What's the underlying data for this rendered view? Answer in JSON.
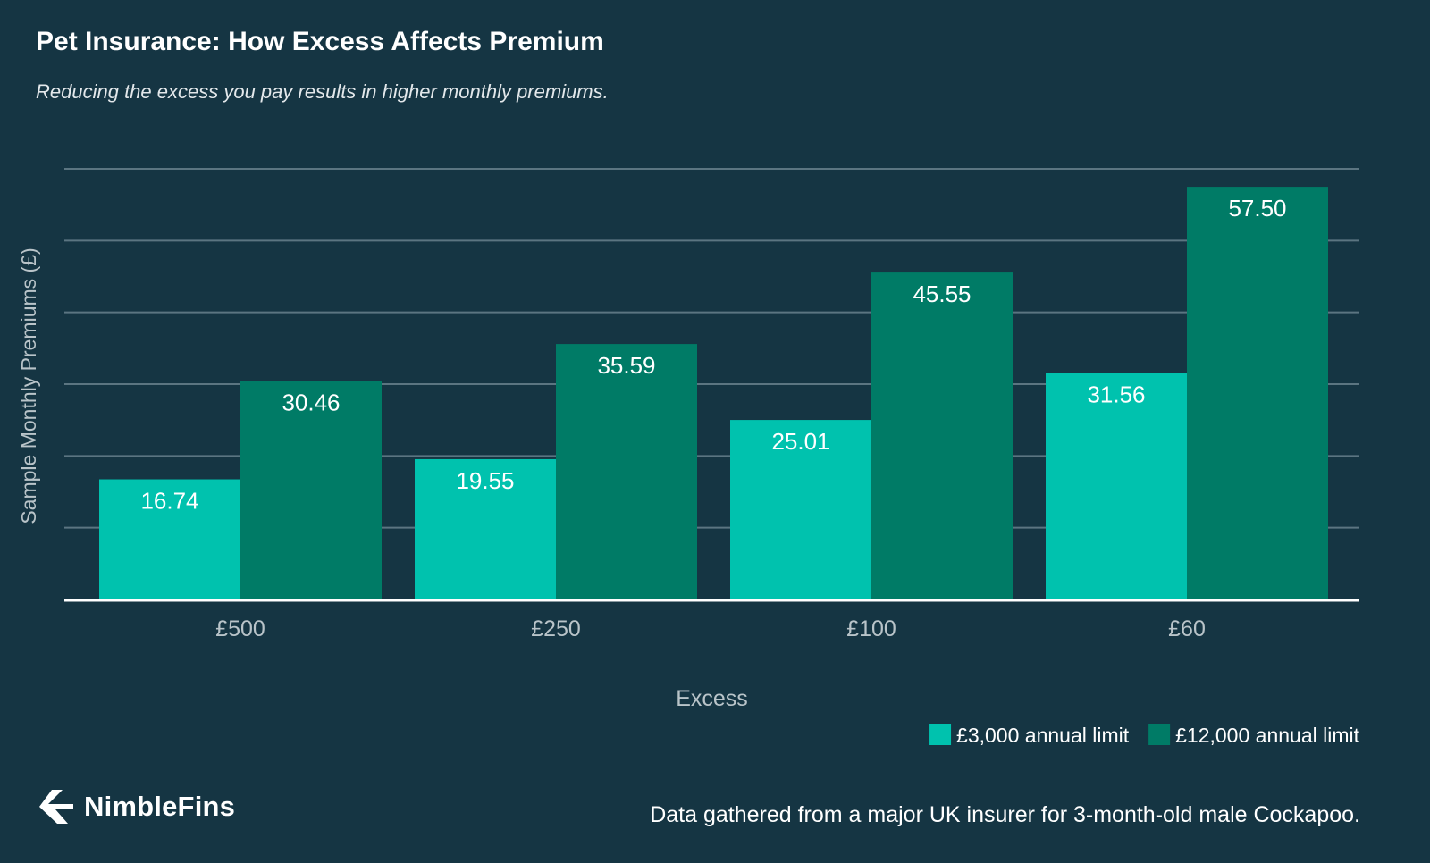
{
  "header": {
    "title": "Pet Insurance: How Excess Affects Premium",
    "subtitle": "Reducing the excess you pay results in higher monthly premiums."
  },
  "chart_data": {
    "type": "bar",
    "title": "Pet Insurance: How Excess Affects Premium",
    "subtitle": "Reducing the excess you pay results in higher monthly premiums.",
    "xlabel": "Excess",
    "ylabel": "Sample Monthly Premiums (£)",
    "categories": [
      "£500",
      "£250",
      "£100",
      "£60"
    ],
    "series": [
      {
        "name": "£3,000 annual limit",
        "values": [
          16.74,
          19.55,
          25.01,
          31.56
        ],
        "labels": [
          "16.74",
          "19.55",
          "25.01",
          "31.56"
        ],
        "color": "#00c2ae"
      },
      {
        "name": "£12,000 annual limit",
        "values": [
          30.46,
          35.59,
          45.55,
          57.5
        ],
        "labels": [
          "30.46",
          "35.59",
          "45.55",
          "57.50"
        ],
        "color": "#007b66"
      }
    ],
    "ylim": [
      0,
      60
    ],
    "grid": true,
    "legend": "bottom-right"
  },
  "colors": {
    "background": "#153543",
    "series_light": "#00c2ae",
    "series_dark": "#007b66",
    "gridline": "#5b7581",
    "axis_text": "#b9c4c9"
  },
  "footer": {
    "brand": "NimbleFins",
    "logo_icon": "nimblefins-arrow-icon",
    "note": "Data gathered from a major UK insurer for 3-month-old male Cockapoo."
  }
}
